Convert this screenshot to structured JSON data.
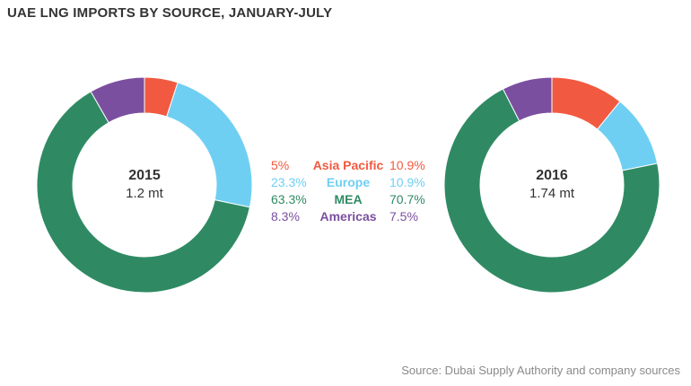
{
  "title": "UAE LNG IMPORTS BY SOURCE, JANUARY-JULY",
  "source": "Source: Dubai Supply Authority and company sources",
  "colors": {
    "asia_pacific": "#f15a40",
    "europe": "#6fcff3",
    "mea": "#2f8a64",
    "americas": "#7b4fa0"
  },
  "chart_data": [
    {
      "type": "pie",
      "year": "2015",
      "total": "1.2 mt",
      "categories": [
        "Asia Pacific",
        "Europe",
        "MEA",
        "Americas"
      ],
      "values": [
        5,
        23.3,
        63.3,
        8.3
      ],
      "labels": [
        "5%",
        "23.3%",
        "63.3%",
        "8.3%"
      ]
    },
    {
      "type": "pie",
      "year": "2016",
      "total": "1.74 mt",
      "categories": [
        "Asia Pacific",
        "Europe",
        "MEA",
        "Americas"
      ],
      "values": [
        10.9,
        10.9,
        70.7,
        7.5
      ],
      "labels": [
        "10.9%",
        "10.9%",
        "70.7%",
        "7.5%"
      ]
    }
  ]
}
